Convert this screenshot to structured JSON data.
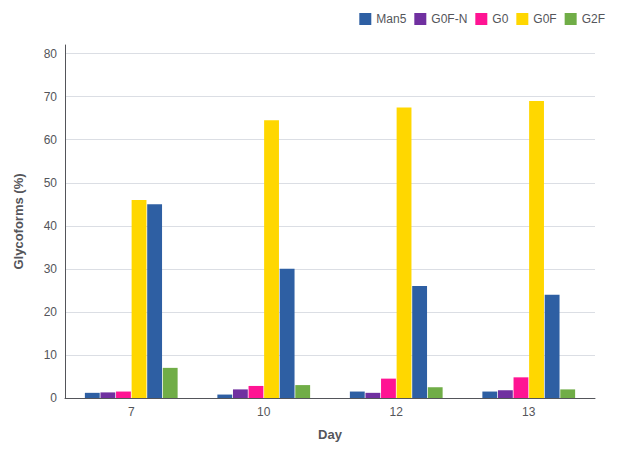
{
  "chart_data": {
    "type": "bar",
    "categories": [
      "7",
      "10",
      "12",
      "13"
    ],
    "series": [
      {
        "name": "Man5",
        "color": "#2E5FA3",
        "values": [
          1.2,
          0.8,
          1.5,
          1.5
        ]
      },
      {
        "name": "G0F-N",
        "color": "#7030A0",
        "values": [
          1.3,
          2.0,
          1.2,
          1.8
        ]
      },
      {
        "name": "G0",
        "color": "#FF1493",
        "values": [
          1.5,
          2.8,
          4.5,
          4.8
        ]
      },
      {
        "name": "G0F",
        "color": "#FFD700",
        "values": [
          46.0,
          64.5,
          67.5,
          69.0
        ]
      },
      {
        "name": "Man5",
        "color": "#2E5FA3",
        "values": [
          45.0,
          30.0,
          26.0,
          24.0
        ]
      },
      {
        "name": "G2F",
        "color": "#70AD47",
        "values": [
          7.0,
          3.0,
          2.5,
          2.0
        ]
      }
    ],
    "xlabel": "Day",
    "ylabel": "Glycoforms (%)",
    "ylim": [
      0,
      82
    ],
    "yticks": [
      0,
      10,
      20,
      30,
      40,
      50,
      60,
      70,
      80
    ],
    "grid": true,
    "legend": "upper right"
  }
}
